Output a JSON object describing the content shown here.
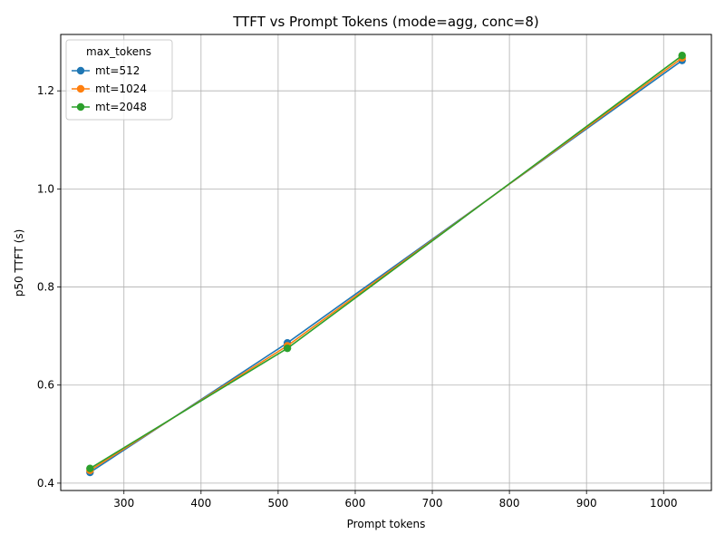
{
  "chart_data": {
    "type": "line",
    "title": "TTFT vs Prompt Tokens (mode=agg, conc=8)",
    "xlabel": "Prompt tokens",
    "ylabel": "p50 TTFT (s)",
    "xlim": [
      218,
      1062
    ],
    "ylim": [
      0.385,
      1.315
    ],
    "xticks": [
      300,
      400,
      500,
      600,
      700,
      800,
      900,
      1000
    ],
    "yticks": [
      0.4,
      0.6,
      0.8,
      1.0,
      1.2
    ],
    "ytick_labels": [
      "0.4",
      "0.6",
      "0.8",
      "1.0",
      "1.2"
    ],
    "grid": true,
    "legend": {
      "title": "max_tokens",
      "placement": "top-left"
    },
    "x": [
      256,
      512,
      1024
    ],
    "series": [
      {
        "name": "mt=512",
        "color": "#1f77b4",
        "values": [
          0.422,
          0.686,
          1.262
        ]
      },
      {
        "name": "mt=1024",
        "color": "#ff7f0e",
        "values": [
          0.426,
          0.68,
          1.267
        ]
      },
      {
        "name": "mt=2048",
        "color": "#2ca02c",
        "values": [
          0.43,
          0.675,
          1.272
        ]
      }
    ]
  }
}
